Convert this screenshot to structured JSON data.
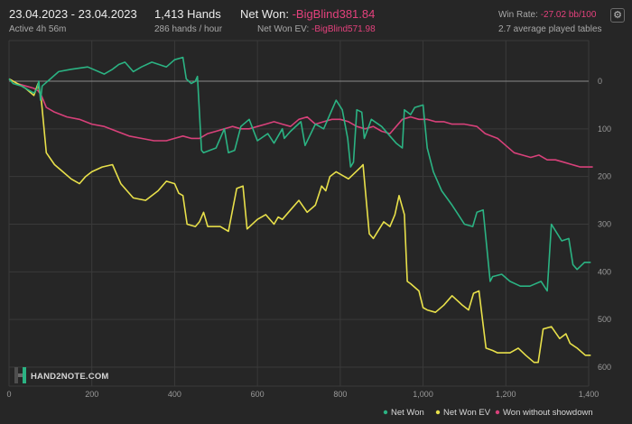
{
  "header": {
    "date_range": "23.04.2023 - 23.04.2023",
    "active": "Active 4h 56m",
    "hands": "1,413 Hands",
    "hands_per_hour": "286 hands / hour",
    "net_won_label": "Net Won: ",
    "net_won_value": "-BigBlind381.84",
    "net_won_ev_label": "Net Won  EV: ",
    "net_won_ev_value": "-BigBlind571.98",
    "win_rate_label": "Win Rate: ",
    "win_rate_value": "-27.02 bb/100",
    "avg_tables": "2.7 average played tables"
  },
  "settings_icon": "gear-icon",
  "logo": {
    "text": "HAND2NOTE.COM",
    "icon": "h2n-logo-icon"
  },
  "colors": {
    "background": "#262626",
    "grid": "#3a3a3a",
    "zero_line": "#8a8a8a",
    "net_won": "#2bb383",
    "net_won_ev": "#e8e04a",
    "won_without_showdown": "#d8417a",
    "negative_text": "#e3417c"
  },
  "chart_data": {
    "type": "line",
    "xlim": [
      0,
      1413
    ],
    "ylim": [
      0,
      600
    ],
    "y_inverted": true,
    "x_ticks": [
      "0",
      "200",
      "400",
      "600",
      "800",
      "1,000",
      "1,200",
      "1,400"
    ],
    "x_tick_values": [
      0,
      200,
      400,
      600,
      800,
      1000,
      1200,
      1400
    ],
    "y_ticks": [
      "0",
      "100",
      "200",
      "300",
      "400",
      "500",
      "600"
    ],
    "y_tick_values": [
      0,
      100,
      200,
      300,
      400,
      500,
      600
    ],
    "grid": true,
    "legend_position": "bottom-right",
    "series": [
      {
        "name": "Net Won",
        "color": "#2bb383",
        "x": [
          0,
          10,
          30,
          60,
          68,
          72,
          76,
          80,
          100,
          120,
          150,
          190,
          230,
          250,
          265,
          280,
          300,
          320,
          345,
          380,
          400,
          420,
          428,
          440,
          450,
          455,
          465,
          470,
          500,
          520,
          530,
          545,
          560,
          580,
          600,
          625,
          640,
          660,
          665,
          680,
          705,
          715,
          740,
          760,
          790,
          805,
          818,
          825,
          832,
          840,
          852,
          858,
          875,
          900,
          920,
          935,
          950,
          955,
          970,
          980,
          1000,
          1010,
          1025,
          1045,
          1070,
          1085,
          1100,
          1120,
          1130,
          1145,
          1162,
          1168,
          1190,
          1210,
          1235,
          1258,
          1285,
          1300,
          1310,
          1335,
          1352,
          1362,
          1372,
          1390,
          1405
        ],
        "y": [
          -5,
          5,
          10,
          25,
          15,
          0,
          40,
          10,
          -5,
          -20,
          -25,
          -30,
          -15,
          -25,
          -35,
          -40,
          -20,
          -30,
          -40,
          -30,
          -45,
          -50,
          -5,
          5,
          0,
          -10,
          145,
          150,
          140,
          100,
          150,
          145,
          95,
          80,
          125,
          110,
          130,
          100,
          120,
          105,
          85,
          135,
          90,
          100,
          40,
          60,
          120,
          180,
          170,
          60,
          65,
          120,
          80,
          95,
          115,
          130,
          140,
          60,
          70,
          55,
          50,
          140,
          190,
          230,
          260,
          280,
          300,
          305,
          275,
          270,
          420,
          410,
          405,
          420,
          430,
          430,
          420,
          440,
          300,
          335,
          330,
          385,
          395,
          380,
          380
        ]
      },
      {
        "name": "Net Won  EV",
        "color": "#e8e04a",
        "x": [
          0,
          20,
          40,
          60,
          70,
          78,
          90,
          110,
          130,
          150,
          170,
          185,
          200,
          225,
          250,
          270,
          300,
          330,
          360,
          380,
          400,
          410,
          420,
          430,
          450,
          460,
          470,
          480,
          510,
          530,
          550,
          565,
          575,
          600,
          620,
          640,
          650,
          660,
          680,
          700,
          720,
          740,
          755,
          765,
          775,
          790,
          820,
          850,
          855,
          870,
          880,
          905,
          920,
          932,
          942,
          955,
          962,
          970,
          990,
          1000,
          1010,
          1030,
          1050,
          1070,
          1095,
          1110,
          1122,
          1135,
          1152,
          1168,
          1180,
          1210,
          1230,
          1248,
          1268,
          1278,
          1290,
          1310,
          1330,
          1345,
          1355,
          1372,
          1392,
          1405
        ],
        "y": [
          -5,
          5,
          15,
          30,
          5,
          40,
          150,
          175,
          190,
          205,
          215,
          200,
          190,
          180,
          175,
          215,
          245,
          250,
          230,
          210,
          215,
          235,
          240,
          300,
          305,
          295,
          275,
          305,
          305,
          315,
          225,
          220,
          310,
          290,
          280,
          300,
          285,
          290,
          270,
          250,
          275,
          260,
          220,
          230,
          200,
          190,
          205,
          180,
          175,
          320,
          330,
          295,
          305,
          280,
          240,
          280,
          420,
          425,
          440,
          475,
          480,
          485,
          470,
          450,
          470,
          480,
          445,
          440,
          560,
          565,
          570,
          570,
          560,
          575,
          590,
          590,
          520,
          515,
          540,
          530,
          550,
          560,
          575,
          575
        ]
      },
      {
        "name": "Won without showdown",
        "color": "#d8417a",
        "x": [
          0,
          20,
          40,
          60,
          70,
          78,
          90,
          110,
          140,
          170,
          200,
          230,
          260,
          290,
          320,
          350,
          380,
          400,
          420,
          440,
          460,
          480,
          500,
          520,
          540,
          560,
          580,
          600,
          620,
          640,
          660,
          680,
          700,
          720,
          740,
          760,
          780,
          800,
          820,
          840,
          860,
          880,
          900,
          920,
          935,
          950,
          970,
          990,
          1010,
          1030,
          1050,
          1070,
          1100,
          1130,
          1150,
          1165,
          1180,
          1200,
          1220,
          1240,
          1260,
          1280,
          1300,
          1320,
          1340,
          1360,
          1380,
          1400,
          1410
        ],
        "y": [
          -5,
          5,
          10,
          15,
          20,
          30,
          55,
          65,
          75,
          80,
          90,
          95,
          105,
          115,
          120,
          125,
          125,
          120,
          115,
          120,
          120,
          110,
          105,
          100,
          95,
          100,
          100,
          95,
          90,
          85,
          90,
          95,
          80,
          75,
          90,
          85,
          80,
          80,
          85,
          95,
          100,
          95,
          105,
          110,
          95,
          80,
          75,
          80,
          80,
          85,
          85,
          90,
          90,
          95,
          110,
          115,
          120,
          135,
          150,
          155,
          160,
          155,
          165,
          165,
          170,
          175,
          180,
          180,
          180
        ]
      }
    ]
  }
}
